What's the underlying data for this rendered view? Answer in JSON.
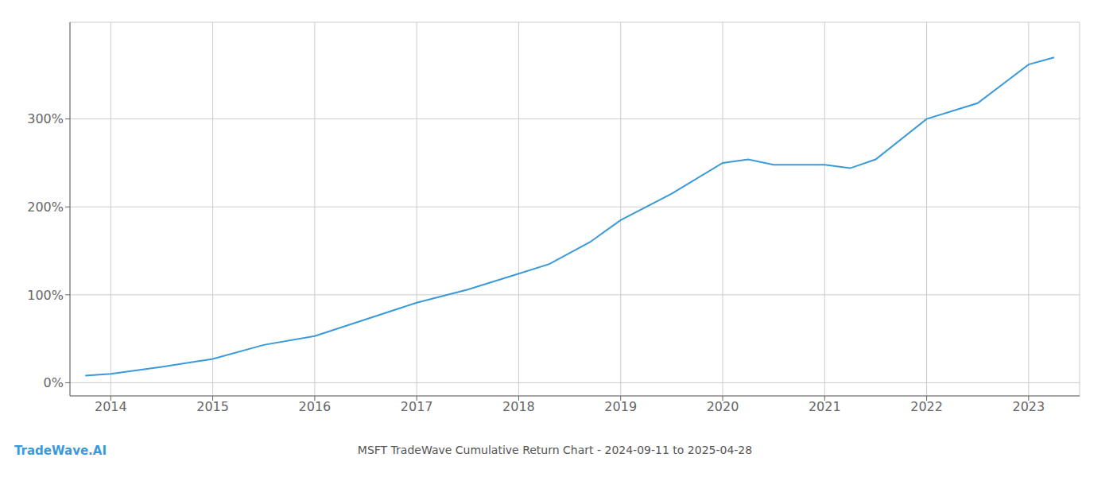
{
  "chart_data": {
    "type": "line",
    "title": "MSFT TradeWave Cumulative Return Chart - 2024-09-11 to 2025-04-28",
    "annotations": [
      {
        "text": "TradeWave.AI"
      }
    ],
    "color": "#3a9ad9",
    "x": [
      2013.75,
      2014.0,
      2014.5,
      2015.0,
      2015.5,
      2016.0,
      2016.5,
      2017.0,
      2017.5,
      2018.0,
      2018.3,
      2018.7,
      2019.0,
      2019.5,
      2020.0,
      2020.25,
      2020.5,
      2021.0,
      2021.25,
      2021.5,
      2022.0,
      2022.5,
      2023.0,
      2023.25
    ],
    "values": [
      8,
      10,
      18,
      27,
      43,
      53,
      72,
      91,
      106,
      124,
      135,
      160,
      185,
      215,
      250,
      254,
      248,
      248,
      244,
      254,
      300,
      318,
      362,
      370
    ],
    "xlim": [
      2013.6,
      2023.5
    ],
    "xticks": [
      2014,
      2015,
      2016,
      2017,
      2018,
      2019,
      2020,
      2021,
      2022,
      2023
    ],
    "ylim": [
      -15,
      410
    ],
    "yticks": [
      {
        "value": 0,
        "label": "0%"
      },
      {
        "value": 100,
        "label": "100%"
      },
      {
        "value": 200,
        "label": "200%"
      },
      {
        "value": 300,
        "label": "300%"
      }
    ],
    "grid": true
  }
}
